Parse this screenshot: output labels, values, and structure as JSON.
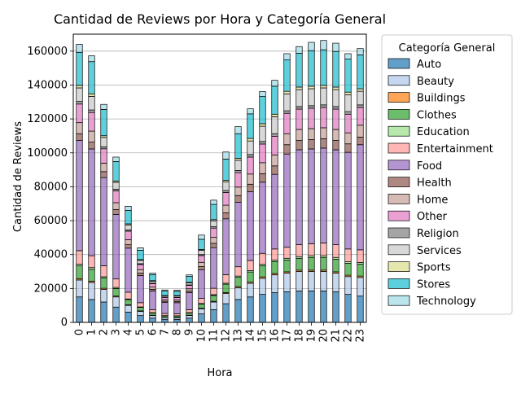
{
  "chart_data": {
    "type": "bar",
    "stacked": true,
    "title": "Cantidad de Reviews por Hora y Categoría General",
    "xlabel": "Hora",
    "ylabel": "Cantidad de Reviews",
    "ylim": [
      0,
      170000
    ],
    "yticks": [
      0,
      20000,
      40000,
      60000,
      80000,
      100000,
      120000,
      140000,
      160000
    ],
    "grid": "y",
    "legend_title": "Categoría General",
    "legend_placement": "outside-right",
    "categories": [
      "0",
      "1",
      "2",
      "3",
      "4",
      "5",
      "6",
      "7",
      "8",
      "9",
      "10",
      "11",
      "12",
      "13",
      "14",
      "15",
      "16",
      "17",
      "18",
      "19",
      "20",
      "21",
      "22",
      "23"
    ],
    "series": [
      {
        "name": "Auto",
        "color": "#1f77b4",
        "values": [
          15000,
          13500,
          12000,
          9000,
          6000,
          4000,
          2500,
          1800,
          1700,
          2500,
          5000,
          7500,
          11000,
          13500,
          15000,
          16500,
          17500,
          18000,
          18500,
          18500,
          18500,
          18000,
          16500,
          15500
        ]
      },
      {
        "name": "Beauty",
        "color": "#aec7e8",
        "values": [
          10000,
          10000,
          7500,
          6000,
          4000,
          2500,
          1500,
          1000,
          1000,
          1500,
          3000,
          4500,
          6000,
          7000,
          8000,
          9500,
          10500,
          11000,
          11500,
          11500,
          11500,
          11000,
          10500,
          11000
        ]
      },
      {
        "name": "Buildings",
        "color": "#ff7f0e",
        "values": [
          800,
          800,
          600,
          500,
          400,
          300,
          200,
          150,
          150,
          200,
          300,
          400,
          500,
          600,
          700,
          800,
          800,
          800,
          800,
          800,
          800,
          800,
          800,
          800
        ]
      },
      {
        "name": "Clothes",
        "color": "#2ca02c",
        "values": [
          7500,
          7000,
          6000,
          4500,
          3000,
          2000,
          1300,
          900,
          900,
          1300,
          2500,
          3500,
          5000,
          5500,
          6000,
          6500,
          7000,
          7000,
          7000,
          7500,
          7500,
          7500,
          7000,
          7000
        ]
      },
      {
        "name": "Education",
        "color": "#98df8a",
        "values": [
          1000,
          1000,
          800,
          600,
          400,
          300,
          200,
          150,
          150,
          200,
          300,
          400,
          600,
          700,
          800,
          900,
          1000,
          1000,
          1000,
          1000,
          1000,
          1000,
          1000,
          1000
        ]
      },
      {
        "name": "Entertainment",
        "color": "#ff9896",
        "values": [
          8000,
          7000,
          6500,
          5000,
          4000,
          2500,
          1800,
          1200,
          1200,
          1800,
          3000,
          3800,
          5000,
          5500,
          6000,
          6500,
          6500,
          6500,
          7000,
          7000,
          7500,
          7500,
          7500,
          7500
        ]
      },
      {
        "name": "Food",
        "color": "#9467bd",
        "values": [
          65000,
          63000,
          52000,
          38000,
          26000,
          16000,
          11000,
          6500,
          6500,
          10000,
          17000,
          24000,
          33000,
          38000,
          40500,
          42000,
          44000,
          55000,
          56000,
          56000,
          56000,
          56000,
          57000,
          62000
        ]
      },
      {
        "name": "Health",
        "color": "#8c564b",
        "values": [
          4000,
          4000,
          3500,
          3000,
          2000,
          1500,
          1000,
          700,
          700,
          1000,
          1800,
          2500,
          3500,
          4000,
          4500,
          5000,
          5000,
          5500,
          5500,
          5500,
          5500,
          5500,
          5000,
          4500
        ]
      },
      {
        "name": "Home",
        "color": "#c49c94",
        "values": [
          6500,
          6500,
          5000,
          4000,
          3000,
          2000,
          1300,
          900,
          900,
          1300,
          2500,
          3500,
          4500,
          5000,
          6000,
          6500,
          6500,
          6500,
          6500,
          6500,
          6500,
          6500,
          6500,
          7000
        ]
      },
      {
        "name": "Other",
        "color": "#e377c2",
        "values": [
          11000,
          11000,
          8500,
          7000,
          5000,
          3000,
          2000,
          1400,
          1400,
          2000,
          4000,
          5500,
          7500,
          8500,
          10000,
          11000,
          11000,
          12000,
          12000,
          12000,
          12000,
          12000,
          11000,
          10500
        ]
      },
      {
        "name": "Religion",
        "color": "#7f7f7f",
        "values": [
          1500,
          1500,
          1200,
          1000,
          700,
          500,
          300,
          200,
          200,
          300,
          600,
          800,
          1200,
          1300,
          1500,
          1500,
          1500,
          1500,
          1500,
          1500,
          1500,
          1500,
          1500,
          1500
        ]
      },
      {
        "name": "Services",
        "color": "#c7c7c7",
        "values": [
          8000,
          8000,
          5500,
          4000,
          3000,
          2000,
          1200,
          800,
          800,
          1200,
          2500,
          3500,
          5000,
          6000,
          8000,
          9000,
          10000,
          10000,
          10000,
          10000,
          10000,
          10000,
          10000,
          8000
        ]
      },
      {
        "name": "Sports",
        "color": "#dbdb8d",
        "values": [
          1500,
          1500,
          1000,
          800,
          600,
          400,
          300,
          200,
          200,
          300,
          500,
          700,
          1000,
          1200,
          1500,
          1500,
          1500,
          1500,
          1500,
          1500,
          1500,
          1500,
          1500,
          1500
        ]
      },
      {
        "name": "Stores",
        "color": "#17becf",
        "values": [
          19500,
          19000,
          15500,
          11500,
          8000,
          5500,
          3500,
          2500,
          2500,
          3500,
          6000,
          9000,
          12500,
          14500,
          14500,
          16000,
          16500,
          18500,
          20000,
          21000,
          21000,
          21000,
          19500,
          20000
        ]
      },
      {
        "name": "Technology",
        "color": "#9edae5",
        "values": [
          4700,
          3500,
          3000,
          2600,
          2400,
          1500,
          900,
          700,
          700,
          900,
          2500,
          2500,
          4200,
          4200,
          3000,
          3000,
          3500,
          3700,
          3900,
          4900,
          5500,
          4900,
          3200,
          3700
        ]
      }
    ]
  }
}
